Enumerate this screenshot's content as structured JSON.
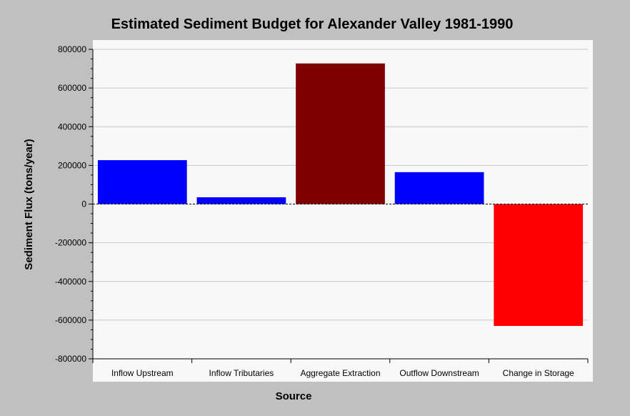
{
  "chart_data": {
    "type": "bar",
    "title": "Estimated Sediment Budget for Alexander Valley 1981-1990",
    "xlabel": "Source",
    "ylabel": "Sediment Flux (tons/year)",
    "categories": [
      "Inflow Upstream",
      "Inflow Tributaries",
      "Aggregate Extraction",
      "Outflow Downstream",
      "Change in Storage"
    ],
    "values": [
      227000,
      35000,
      727000,
      165000,
      -630000
    ],
    "bar_colors": [
      "#0000ff",
      "#0000ff",
      "#7f0000",
      "#0000ff",
      "#ff0000"
    ],
    "ylim": [
      -800000,
      800000
    ],
    "y_ticks": [
      800000,
      600000,
      400000,
      200000,
      0,
      -200000,
      -400000,
      -600000,
      -800000
    ],
    "y_tick_labels": [
      "800000",
      "600000",
      "400000",
      "200000",
      "0",
      "-200000",
      "-400000",
      "-600000",
      "-800000"
    ],
    "grid": true,
    "zero_line": "dashed",
    "colors": {
      "background": "#c0c0c0",
      "plot_background": "#f8f8f8",
      "grid": "#c8c8c8"
    }
  }
}
